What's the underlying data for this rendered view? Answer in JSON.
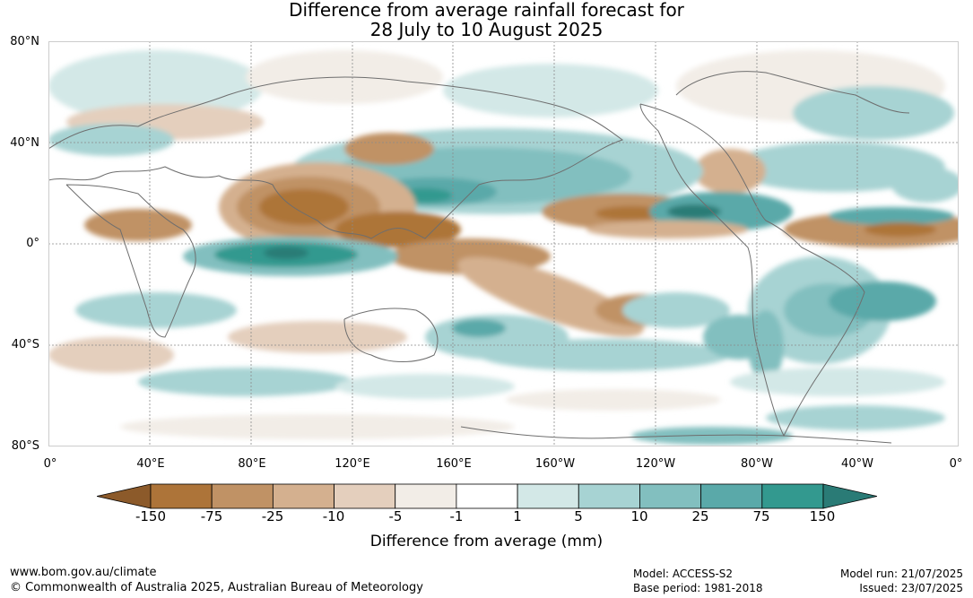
{
  "title": {
    "line1": "Difference from average rainfall forecast for",
    "line2": "28 July to 10 August 2025"
  },
  "map": {
    "lat_labels": [
      "80°N",
      "40°N",
      "0°",
      "40°S",
      "80°S"
    ],
    "lon_labels": [
      "0°",
      "40°E",
      "80°E",
      "120°E",
      "160°E",
      "160°W",
      "120°W",
      "80°W",
      "40°W",
      "0°"
    ],
    "colors": {
      "ocean": "#ffffff",
      "coast": "#6e6e6e",
      "grid": "#8a8a8a"
    }
  },
  "colorbar": {
    "label": "Difference from average (mm)",
    "tick_labels": [
      "-150",
      "-75",
      "-25",
      "-10",
      "-5",
      "-1",
      "1",
      "5",
      "10",
      "25",
      "75",
      "150"
    ],
    "colors": [
      "#8c5a2a",
      "#ad7439",
      "#c09265",
      "#d4b08f",
      "#e4cfbd",
      "#f2ede7",
      "#ffffff",
      "#d3e8e7",
      "#a7d3d3",
      "#82bfbf",
      "#5aa9a9",
      "#33998f",
      "#2a7b76"
    ]
  },
  "footer": {
    "url": "www.bom.gov.au/climate",
    "copyright": "© Commonwealth of Australia 2025, Australian Bureau of Meteorology",
    "model": "Model: ACCESS-S2",
    "base_period": "Base period: 1981-2018",
    "model_run": "Model run: 21/07/2025",
    "issued": "Issued: 23/07/2025"
  }
}
